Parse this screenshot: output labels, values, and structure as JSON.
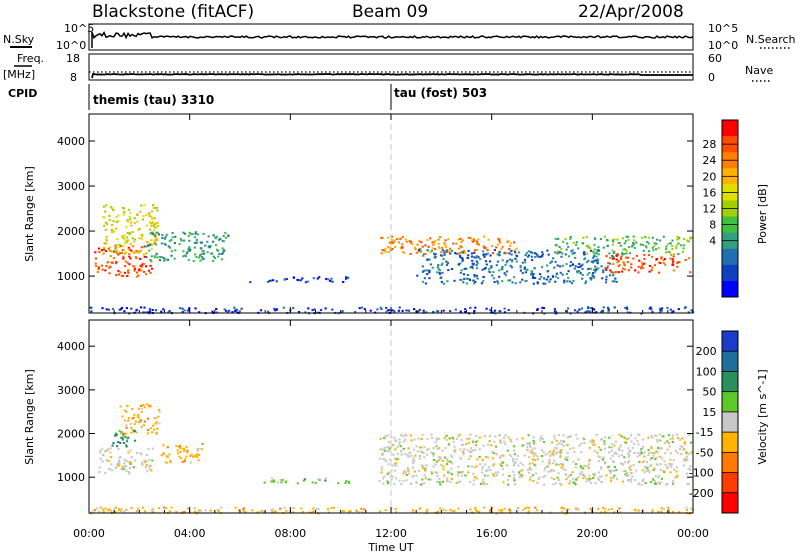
{
  "header": {
    "station": "Blackstone (fitACF)",
    "beam": "Beam 09",
    "date": "22/Apr/2008"
  },
  "left_labels": {
    "nsky": "N.Sky",
    "nsky_top": "10^5",
    "nsky_bottom": "10^0",
    "freq": "Freq.",
    "freq_unit": "[MHz]",
    "freq_top": "18",
    "freq_bottom": "8",
    "cpid": "CPID"
  },
  "right_labels": {
    "nsearch": "N.Search",
    "nsearch_top": "10^5",
    "nsearch_bottom": "10^0",
    "nave": "Nave",
    "nave_top": "60",
    "nave_bottom": "0"
  },
  "cpid_segments": [
    {
      "label": "themis (tau) 3310",
      "start_hour": 0
    },
    {
      "label": "tau (fost) 503",
      "start_hour": 12
    }
  ],
  "power_colorbar": {
    "label": "Power [dB]",
    "ticks": [
      "28",
      "24",
      "20",
      "16",
      "12",
      "8",
      "4"
    ],
    "colors": [
      "#ff0000",
      "#ff4d00",
      "#ff8000",
      "#ffb300",
      "#e0e000",
      "#a0d000",
      "#40c040",
      "#30a080",
      "#2070b0",
      "#1040c0",
      "#0000ff"
    ]
  },
  "velocity_colorbar": {
    "label": "Velocity [m s^-1]",
    "ticks": [
      "200",
      "100",
      "50",
      "15",
      "-15",
      "-50",
      "-100",
      "-200"
    ],
    "colors": [
      "#1a3cc8",
      "#1f6f9c",
      "#2a8f5a",
      "#5dc82a",
      "#c8c8c8",
      "#ffb400",
      "#ff7800",
      "#ff3c00",
      "#ff0000"
    ]
  },
  "x_axis": {
    "label": "Time UT",
    "ticks": [
      "00:00",
      "04:00",
      "08:00",
      "12:00",
      "16:00",
      "20:00",
      "00:00"
    ]
  },
  "chart_data": [
    {
      "type": "heatmap",
      "title": "",
      "quantity": "Power [dB]",
      "xlabel": "Time UT",
      "ylabel": "Slant Range [km]",
      "xlim": [
        0,
        24
      ],
      "ylim": [
        180,
        4600
      ],
      "yticks": [
        1000,
        2000,
        3000,
        4000
      ],
      "regions": [
        {
          "time": [
            0.2,
            2.5
          ],
          "range": [
            1000,
            1700
          ],
          "level_db": 26
        },
        {
          "time": [
            0.5,
            2.7
          ],
          "range": [
            1500,
            2600
          ],
          "level_db": 18
        },
        {
          "time": [
            2.2,
            5.5
          ],
          "range": [
            1350,
            2000
          ],
          "level_db": 10
        },
        {
          "time": [
            6.3,
            10.3
          ],
          "range": [
            880,
            1000
          ],
          "level_db": 6
        },
        {
          "time": [
            11.5,
            17.0
          ],
          "range": [
            1500,
            1900
          ],
          "level_db": 22
        },
        {
          "time": [
            13.0,
            21.0
          ],
          "range": [
            850,
            1600
          ],
          "level_db": 8
        },
        {
          "time": [
            18.5,
            23.9
          ],
          "range": [
            1500,
            1900
          ],
          "level_db": 14
        },
        {
          "time": [
            20.5,
            23.9
          ],
          "range": [
            1100,
            1500
          ],
          "level_db": 26
        },
        {
          "time": [
            0.0,
            24.0
          ],
          "range": [
            190,
            330
          ],
          "level_db": 6
        }
      ]
    },
    {
      "type": "heatmap",
      "title": "",
      "quantity": "Velocity [m s^-1]",
      "xlabel": "Time UT",
      "ylabel": "Slant Range [km]",
      "xlim": [
        0,
        24
      ],
      "ylim": [
        180,
        4600
      ],
      "yticks": [
        1000,
        2000,
        3000,
        4000
      ],
      "regions": [
        {
          "time": [
            0.3,
            2.5
          ],
          "range": [
            1100,
            1700
          ],
          "velocity_ms": -10
        },
        {
          "time": [
            1.2,
            2.8
          ],
          "range": [
            2000,
            2700
          ],
          "velocity_ms": -40
        },
        {
          "time": [
            2.8,
            4.5
          ],
          "range": [
            1350,
            1800
          ],
          "velocity_ms": -40
        },
        {
          "time": [
            0.8,
            1.8
          ],
          "range": [
            1700,
            2100
          ],
          "velocity_ms": 40
        },
        {
          "time": [
            6.5,
            10.3
          ],
          "range": [
            880,
            1000
          ],
          "velocity_ms": 30
        },
        {
          "time": [
            11.5,
            23.9
          ],
          "range": [
            850,
            2000
          ],
          "velocity_ms": 0
        },
        {
          "time": [
            0.0,
            24.0
          ],
          "range": [
            190,
            330
          ],
          "velocity_ms": -30
        }
      ]
    }
  ]
}
